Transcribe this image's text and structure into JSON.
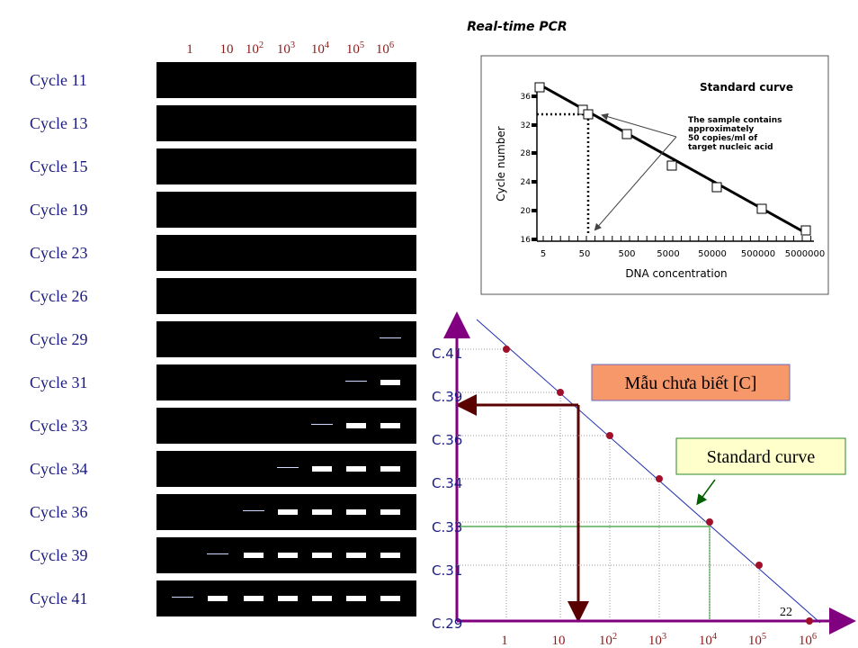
{
  "gel": {
    "column_headers": [
      {
        "base": "1",
        "exp": ""
      },
      {
        "base": "10",
        "exp": ""
      },
      {
        "base": "10",
        "exp": "2"
      },
      {
        "base": "10",
        "exp": "3"
      },
      {
        "base": "10",
        "exp": "4"
      },
      {
        "base": "10",
        "exp": "5"
      },
      {
        "base": "10",
        "exp": "6"
      }
    ],
    "rows": [
      "Cycle 11",
      "Cycle 13",
      "Cycle 15",
      "Cycle 19",
      "Cycle 23",
      "Cycle 26",
      "Cycle 29",
      "Cycle 31",
      "Cycle 33",
      "Cycle 34",
      "Cycle 36",
      "Cycle 39",
      "Cycle 41"
    ]
  },
  "inset": {
    "heading": "Real-time PCR",
    "title": "Standard curve",
    "y_label": "Cycle number",
    "x_label": "DNA concentration",
    "y_ticks": [
      "36",
      "32",
      "28",
      "24",
      "20",
      "16"
    ],
    "x_ticks": [
      "5",
      "50",
      "500",
      "5000",
      "50000",
      "500000",
      "5000000"
    ],
    "annotation": [
      "The sample contains",
      "approximately",
      "50 copies/ml of",
      "target nucleic acid"
    ]
  },
  "diagram": {
    "y_labels": [
      "C.41",
      "C.39",
      "C.36",
      "C.34",
      "C.33",
      "C.31",
      "C.29"
    ],
    "x_labels": [
      {
        "base": "1",
        "exp": ""
      },
      {
        "base": "10",
        "exp": ""
      },
      {
        "base": "10",
        "exp": "2"
      },
      {
        "base": "10",
        "exp": "3"
      },
      {
        "base": "10",
        "exp": "4"
      },
      {
        "base": "10",
        "exp": "5"
      },
      {
        "base": "10",
        "exp": "6"
      }
    ],
    "unknown_box": "Mẫu chưa biết [C]",
    "curve_box": "Standard curve",
    "corner_note": "22"
  }
}
